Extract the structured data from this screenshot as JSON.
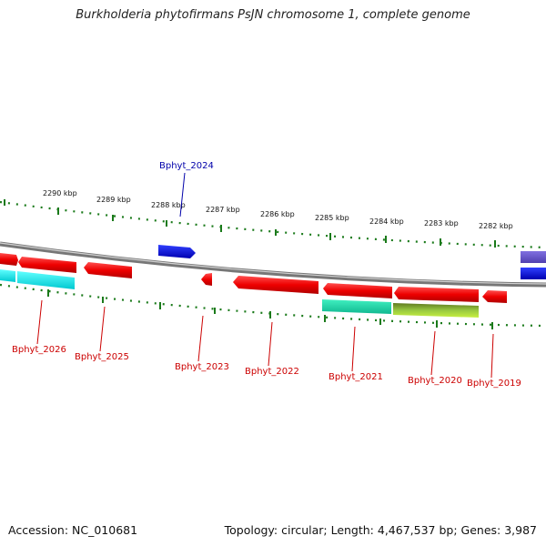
{
  "title": "Burkholderia phytofirmans PsJN chromosome 1, complete genome",
  "footer": {
    "accession": "Accession: NC_010681",
    "stats": "Topology: circular; Length: 4,467,537 bp; Genes: 3,987"
  },
  "scale_labels": [
    "2290 kbp",
    "2289 kbp",
    "2288 kbp",
    "2287 kbp",
    "2286 kbp",
    "2285 kbp",
    "2284 kbp",
    "2283 kbp",
    "2282 kbp"
  ],
  "gene_labels": [
    {
      "text": "Bphyt_2024",
      "strand": "plus"
    },
    {
      "text": "Bphyt_2026",
      "strand": "minus"
    },
    {
      "text": "Bphyt_2025",
      "strand": "minus"
    },
    {
      "text": "Bphyt_2023",
      "strand": "minus"
    },
    {
      "text": "Bphyt_2022",
      "strand": "minus"
    },
    {
      "text": "Bphyt_2021",
      "strand": "minus"
    },
    {
      "text": "Bphyt_2020",
      "strand": "minus"
    },
    {
      "text": "Bphyt_2019",
      "strand": "minus"
    }
  ],
  "colors": {
    "plus_strand": "#0000dd",
    "minus_strand": "#ee0000",
    "backbone": "#888888",
    "tick": "#1a7a1a",
    "cyan_feature": "#22e0e0",
    "teal_feature": "#22d8a8",
    "olive_feature": "#8cc040",
    "purple_feature": "#7060d0"
  }
}
